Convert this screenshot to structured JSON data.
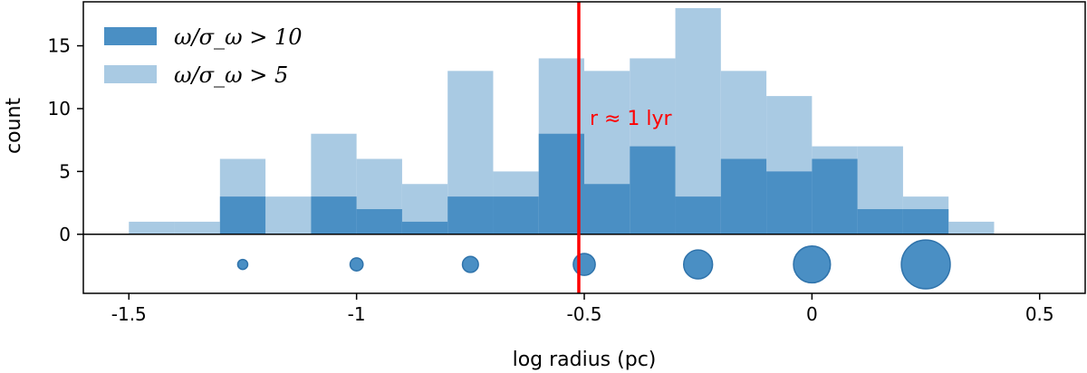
{
  "chart_data": {
    "type": "bar",
    "subtype": "overlaid-histogram",
    "xlabel": "log radius (pc)",
    "ylabel": "count",
    "xlim": [
      -1.6,
      0.6
    ],
    "ylim": [
      -4.7,
      18.5
    ],
    "x_ticks": [
      -1.5,
      -1,
      -0.5,
      0,
      0.5
    ],
    "x_tick_labels": [
      "-1.5",
      "-1",
      "-0.5",
      "0",
      "0.5"
    ],
    "y_ticks": [
      0,
      5,
      10,
      15
    ],
    "y_tick_labels": [
      "0",
      "5",
      "10",
      "15"
    ],
    "bin_width": 0.1,
    "bin_edges_start": -1.5,
    "zero_line": true,
    "legend": {
      "placement": "top-left",
      "entries": [
        "ω/σ_ω > 10",
        "ω/σ_ω > 5"
      ]
    },
    "series": [
      {
        "name": "ω/σ_ω > 10",
        "color": "#4a8fc4",
        "bins": [
          {
            "x0": -1.3,
            "count": 3
          },
          {
            "x0": -1.2,
            "count": 0
          },
          {
            "x0": -1.1,
            "count": 3
          },
          {
            "x0": -1.0,
            "count": 2
          },
          {
            "x0": -0.9,
            "count": 1
          },
          {
            "x0": -0.8,
            "count": 3
          },
          {
            "x0": -0.7,
            "count": 3
          },
          {
            "x0": -0.6,
            "count": 8
          },
          {
            "x0": -0.5,
            "count": 4
          },
          {
            "x0": -0.4,
            "count": 7
          },
          {
            "x0": -0.3,
            "count": 3
          },
          {
            "x0": -0.2,
            "count": 6
          },
          {
            "x0": -0.1,
            "count": 5
          },
          {
            "x0": 0.0,
            "count": 6
          },
          {
            "x0": 0.1,
            "count": 2
          },
          {
            "x0": 0.2,
            "count": 2
          }
        ]
      },
      {
        "name": "ω/σ_ω > 5",
        "color": "#a9cae3",
        "bins": [
          {
            "x0": -1.5,
            "count": 1
          },
          {
            "x0": -1.4,
            "count": 1
          },
          {
            "x0": -1.3,
            "count": 6
          },
          {
            "x0": -1.2,
            "count": 3
          },
          {
            "x0": -1.1,
            "count": 8
          },
          {
            "x0": -1.0,
            "count": 6
          },
          {
            "x0": -0.9,
            "count": 4
          },
          {
            "x0": -0.8,
            "count": 13
          },
          {
            "x0": -0.7,
            "count": 5
          },
          {
            "x0": -0.6,
            "count": 14
          },
          {
            "x0": -0.5,
            "count": 13
          },
          {
            "x0": -0.4,
            "count": 14
          },
          {
            "x0": -0.3,
            "count": 18
          },
          {
            "x0": -0.2,
            "count": 13
          },
          {
            "x0": -0.1,
            "count": 11
          },
          {
            "x0": 0.0,
            "count": 7
          },
          {
            "x0": 0.1,
            "count": 7
          },
          {
            "x0": 0.2,
            "count": 3
          },
          {
            "x0": 0.3,
            "count": 1
          }
        ]
      }
    ],
    "reference_line": {
      "x": -0.512,
      "color": "#ff0000",
      "label": "r ≈ 1 lyr",
      "label_y": 8.7
    },
    "size_markers": {
      "y": -2.4,
      "color": "#4a8fc4",
      "x": [
        -1.25,
        -1.0,
        -0.75,
        -0.5,
        -0.25,
        0.0,
        0.25
      ],
      "relative_size": [
        1,
        1.3,
        1.6,
        2.2,
        2.9,
        3.7,
        4.9
      ]
    }
  }
}
